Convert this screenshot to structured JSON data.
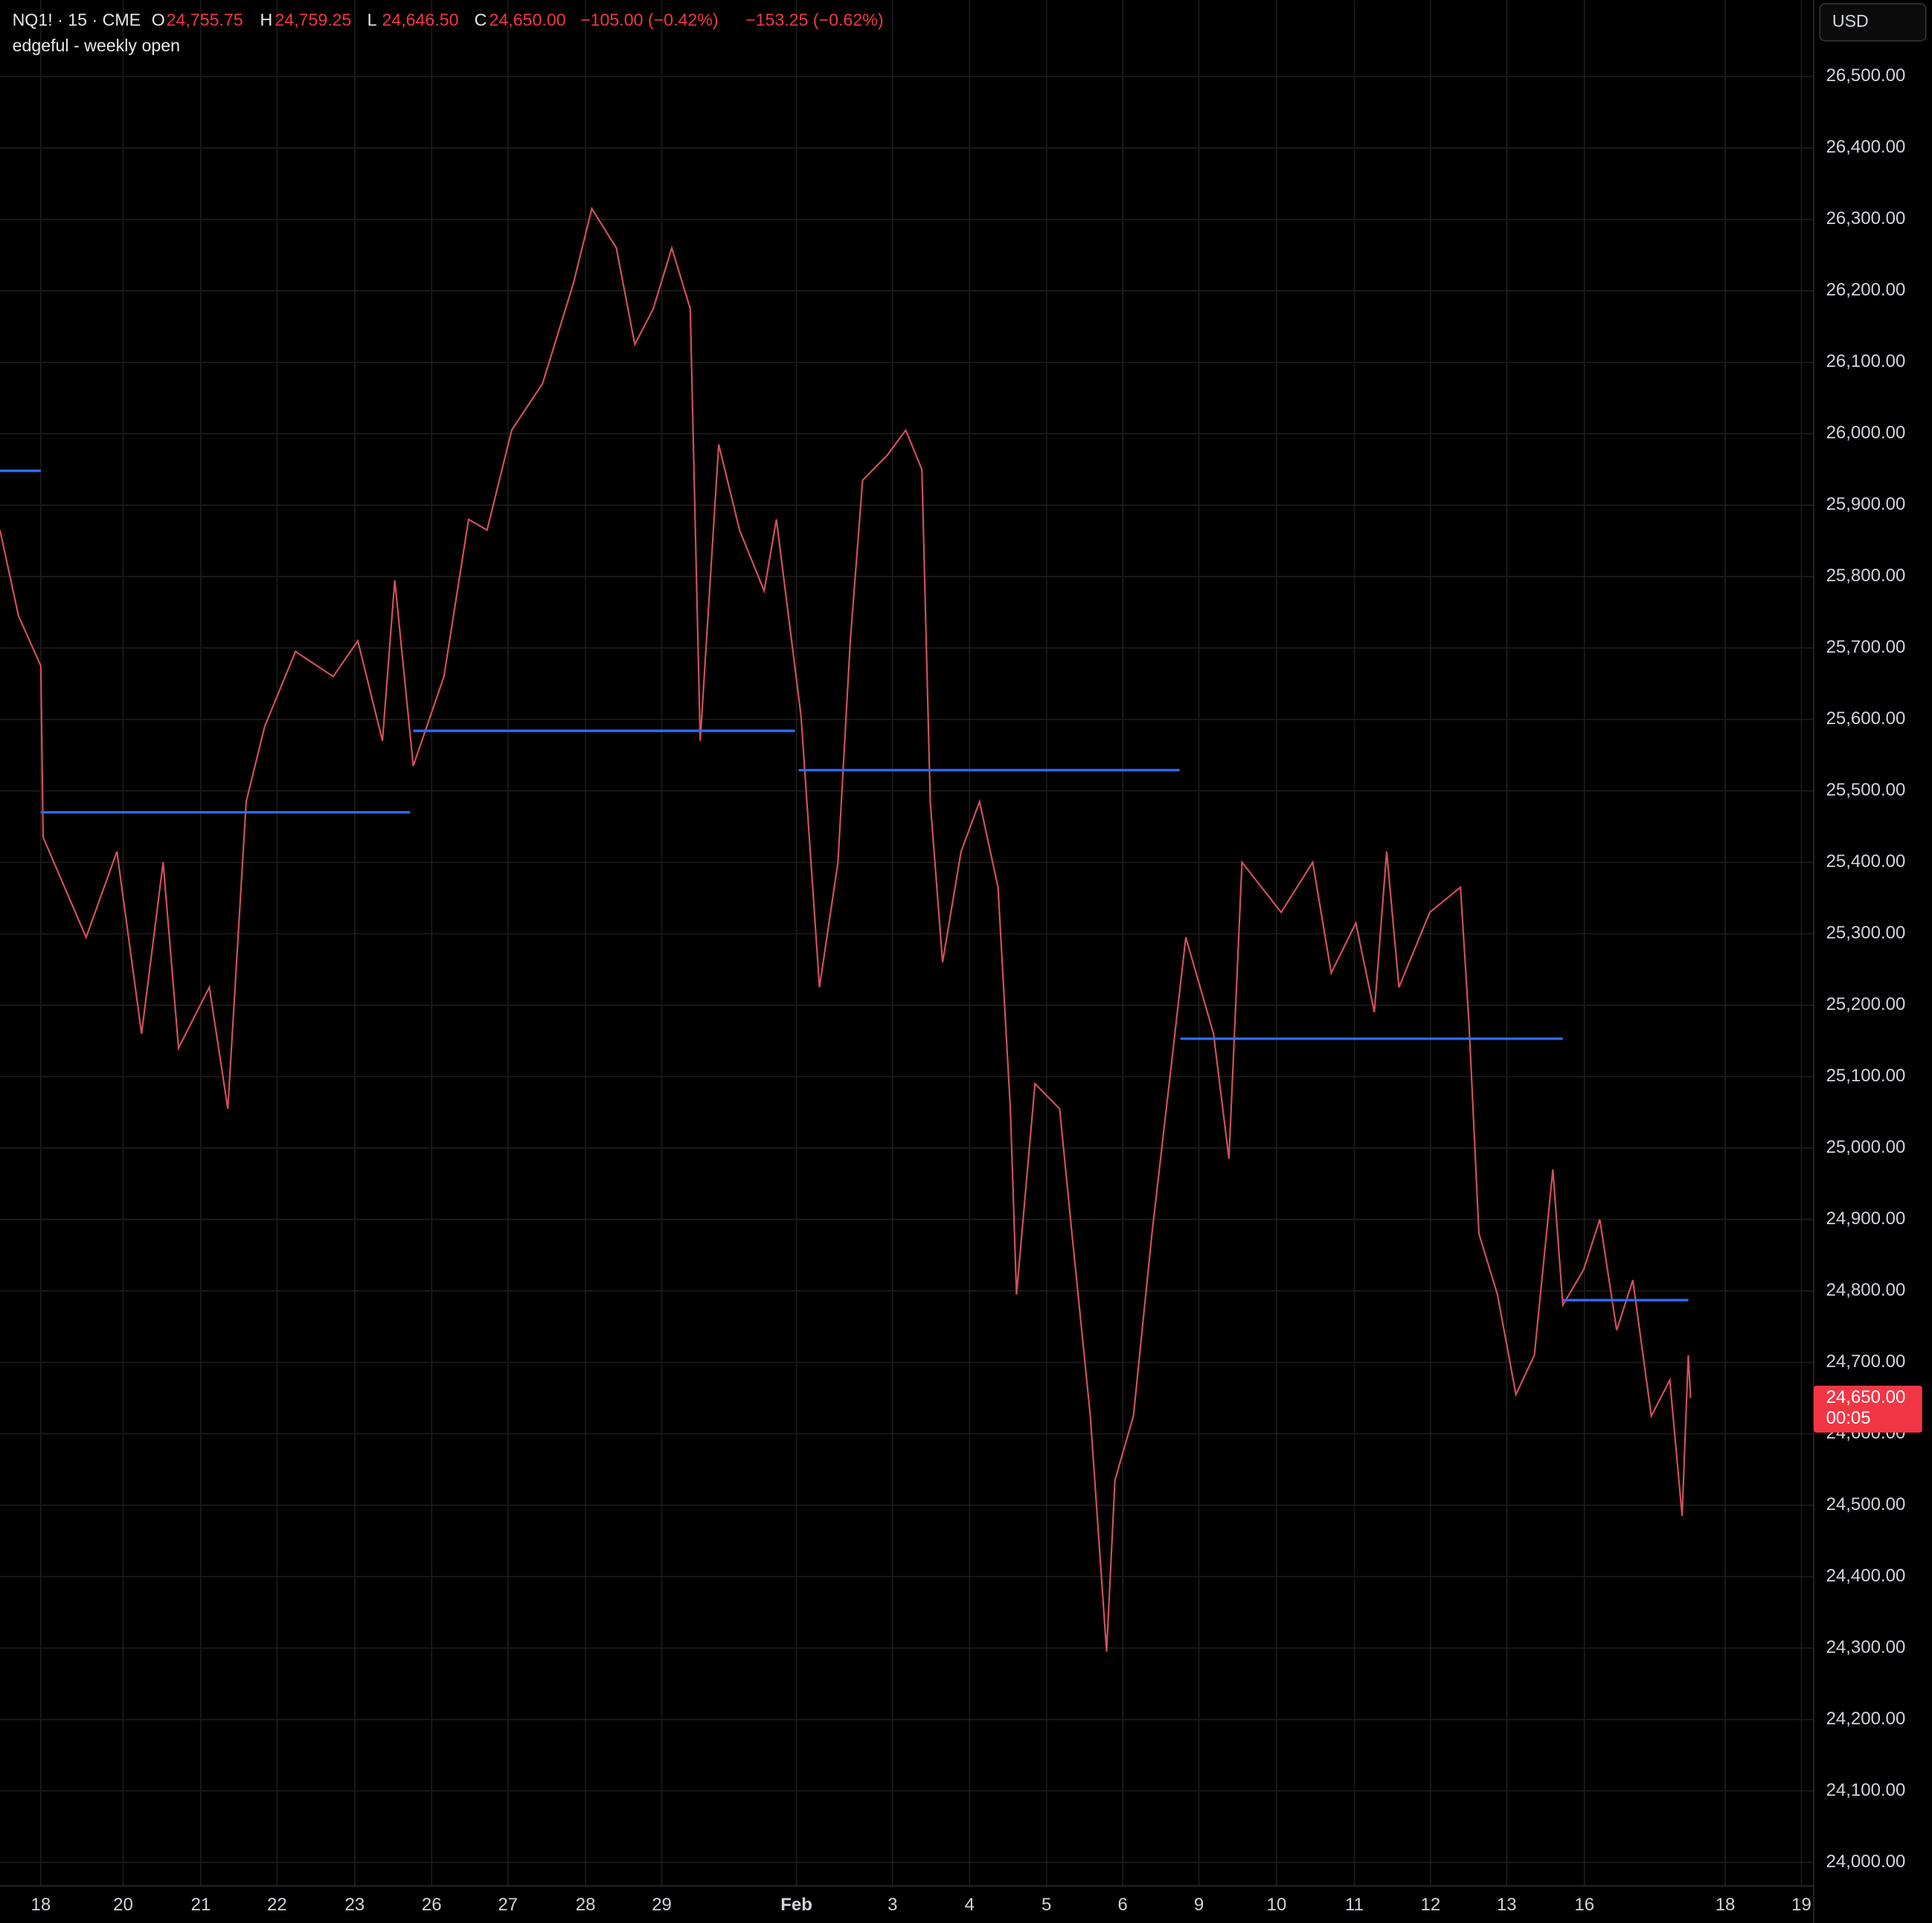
{
  "chart_data": {
    "type": "line",
    "title": "NQ1! · 15 · CME",
    "ohlc": [
      {
        "key": "O",
        "value": "24,755.75"
      },
      {
        "key": "H",
        "value": "24,759.25"
      },
      {
        "key": "L",
        "value": "24,646.50"
      },
      {
        "key": "C",
        "value": "24,650.00"
      }
    ],
    "change": "−105.00 (−0.42%)",
    "change_2": "−153.25 (−0.62%)",
    "currency": "USD",
    "last_price": {
      "value": 24650,
      "label": "24,650.00",
      "countdown": "00:05",
      "color": "#f23645"
    },
    "grid": true,
    "xlim": [
      -0.53,
      23.04
    ],
    "xticks": [
      {
        "value": 0,
        "label": "18"
      },
      {
        "value": 1.07,
        "label": "20"
      },
      {
        "value": 2.08,
        "label": "21"
      },
      {
        "value": 3.07,
        "label": "22"
      },
      {
        "value": 4.08,
        "label": "23"
      },
      {
        "value": 5.08,
        "label": "26"
      },
      {
        "value": 6.07,
        "label": "27"
      },
      {
        "value": 7.08,
        "label": "28"
      },
      {
        "value": 8.07,
        "label": "29"
      },
      {
        "value": 9.82,
        "label": "Feb"
      },
      {
        "value": 11.07,
        "label": "3"
      },
      {
        "value": 12.07,
        "label": "4"
      },
      {
        "value": 13.07,
        "label": "5"
      },
      {
        "value": 14.06,
        "label": "6"
      },
      {
        "value": 15.05,
        "label": "9"
      },
      {
        "value": 16.06,
        "label": "10"
      },
      {
        "value": 17.07,
        "label": "11"
      },
      {
        "value": 18.06,
        "label": "12"
      },
      {
        "value": 19.05,
        "label": "13"
      },
      {
        "value": 20.06,
        "label": "16"
      },
      {
        "value": 21.89,
        "label": "18"
      },
      {
        "value": 22.88,
        "label": "19"
      }
    ],
    "ylim": [
      23967,
      26607
    ],
    "yticks": [
      {
        "value": 24000,
        "label": "24,000.00"
      },
      {
        "value": 24100,
        "label": "24,100.00"
      },
      {
        "value": 24200,
        "label": "24,200.00"
      },
      {
        "value": 24300,
        "label": "24,300.00"
      },
      {
        "value": 24400,
        "label": "24,400.00"
      },
      {
        "value": 24500,
        "label": "24,500.00"
      },
      {
        "value": 24600,
        "label": "24,600.00"
      },
      {
        "value": 24700,
        "label": "24,700.00"
      },
      {
        "value": 24800,
        "label": "24,800.00"
      },
      {
        "value": 24900,
        "label": "24,900.00"
      },
      {
        "value": 25000,
        "label": "25,000.00"
      },
      {
        "value": 25100,
        "label": "25,100.00"
      },
      {
        "value": 25200,
        "label": "25,200.00"
      },
      {
        "value": 25300,
        "label": "25,300.00"
      },
      {
        "value": 25400,
        "label": "25,400.00"
      },
      {
        "value": 25500,
        "label": "25,500.00"
      },
      {
        "value": 25600,
        "label": "25,600.00"
      },
      {
        "value": 25700,
        "label": "25,700.00"
      },
      {
        "value": 25800,
        "label": "25,800.00"
      },
      {
        "value": 25900,
        "label": "25,900.00"
      },
      {
        "value": 26000,
        "label": "26,000.00"
      },
      {
        "value": 26100,
        "label": "26,100.00"
      },
      {
        "value": 26200,
        "label": "26,200.00"
      },
      {
        "value": 26300,
        "label": "26,300.00"
      },
      {
        "value": 26400,
        "label": "26,400.00"
      },
      {
        "value": 26500,
        "label": "26,500.00"
      }
    ],
    "series": [
      {
        "color": "#d3505d",
        "x": [
          -0.53,
          -0.29,
          0,
          0.03,
          0.59,
          0.99,
          1.31,
          1.59,
          1.79,
          2.19,
          2.43,
          2.67,
          2.91,
          3.31,
          3.8,
          4.12,
          4.44,
          4.6,
          4.84,
          5.24,
          5.56,
          5.8,
          6.12,
          6.52,
          6.92,
          7.16,
          7.48,
          7.72,
          7.96,
          8.2,
          8.44,
          8.57,
          8.81,
          9.08,
          9.4,
          9.56,
          9.88,
          10.12,
          10.36,
          10.52,
          10.68,
          11,
          11.24,
          11.45,
          11.56,
          11.72,
          11.96,
          12.2,
          12.44,
          12.6,
          12.68,
          12.92,
          13.24,
          13.4,
          13.64,
          13.85,
          13.96,
          14.2,
          14.44,
          14.68,
          14.88,
          15.24,
          15.44,
          15.61,
          16.12,
          16.53,
          16.77,
          17.09,
          17.33,
          17.49,
          17.65,
          18.05,
          18.45,
          18.56,
          18.69,
          18.93,
          19.17,
          19.41,
          19.65,
          19.78,
          20.05,
          20.26,
          20.48,
          20.69,
          20.93,
          21.17,
          21.33,
          21.41,
          21.44
        ],
        "values": [
          25865,
          25745,
          25675,
          25435,
          25295,
          25415,
          25160,
          25400,
          25140,
          25225,
          25055,
          25485,
          25590,
          25695,
          25660,
          25710,
          25570,
          25795,
          25535,
          25660,
          25880,
          25865,
          26005,
          26070,
          26210,
          26315,
          26260,
          26125,
          26175,
          26260,
          26175,
          25570,
          25985,
          25865,
          25780,
          25880,
          25605,
          25225,
          25400,
          25710,
          25935,
          25970,
          26005,
          25950,
          25485,
          25260,
          25415,
          25485,
          25365,
          25055,
          24795,
          25090,
          25055,
          24880,
          24625,
          24295,
          24535,
          24625,
          24880,
          25105,
          25295,
          25160,
          24985,
          25400,
          25330,
          25400,
          25245,
          25315,
          25190,
          25415,
          25225,
          25330,
          25365,
          25175,
          24880,
          24795,
          24655,
          24710,
          24970,
          24780,
          24830,
          24900,
          24745,
          24815,
          24625,
          24675,
          24485,
          24710,
          24650
        ]
      }
    ],
    "weekly_open": {
      "name": "edgeful - weekly open",
      "color": "#2f6bff",
      "segments": [
        {
          "x": [
            -0.53,
            0
          ],
          "value": 25948
        },
        {
          "x": [
            0,
            4.8
          ],
          "value": 25470
        },
        {
          "x": [
            4.84,
            9.8
          ],
          "value": 25584
        },
        {
          "x": [
            9.85,
            14.8
          ],
          "value": 25529
        },
        {
          "x": [
            14.81,
            19.78
          ],
          "value": 25153
        },
        {
          "x": [
            19.78,
            21.41
          ],
          "value": 24787
        }
      ]
    }
  }
}
